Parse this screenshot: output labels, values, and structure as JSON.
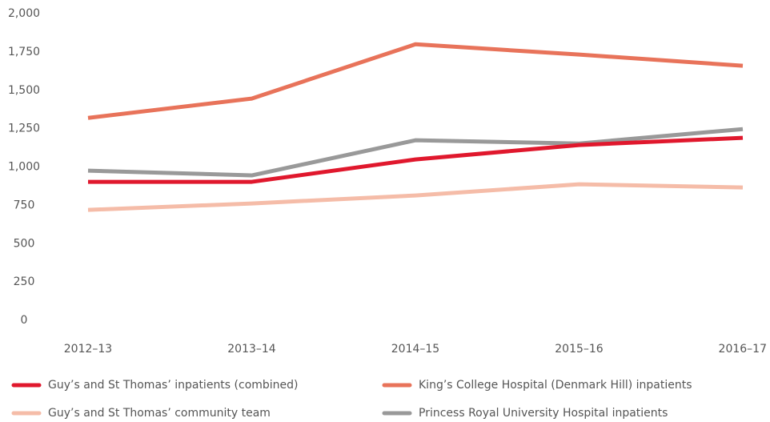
{
  "chart_data": {
    "type": "line",
    "categories": [
      "2012–13",
      "2013–14",
      "2014–15",
      "2015–16",
      "2016–17"
    ],
    "series": [
      {
        "name": "Guy’s and St Thomas’ inpatients (combined)",
        "color": "#e0182d",
        "values": [
          903,
          903,
          1049,
          1143,
          1190
        ]
      },
      {
        "name": "King’s College Hospital (Denmark Hill) inpatients",
        "color": "#e8735a",
        "values": [
          1320,
          1446,
          1800,
          1733,
          1660
        ]
      },
      {
        "name": "Guy’s and St Thomas’ community team",
        "color": "#f5bca8",
        "values": [
          720,
          762,
          814,
          887,
          866
        ]
      },
      {
        "name": "Princess Royal University Hospital inpatients",
        "color": "#999999",
        "values": [
          976,
          945,
          1174,
          1153,
          1247
        ]
      }
    ],
    "ylim": [
      0,
      2000
    ],
    "yticks": [
      0,
      250,
      500,
      750,
      {
        "value": 1000,
        "label": "1,000"
      },
      {
        "value": 1250,
        "label": "1,250"
      },
      {
        "value": 1500,
        "label": "1,500"
      },
      {
        "value": 1750,
        "label": "1,750"
      },
      {
        "value": 2000,
        "label": "2,000"
      }
    ],
    "grid": false,
    "legend": "bottom"
  }
}
